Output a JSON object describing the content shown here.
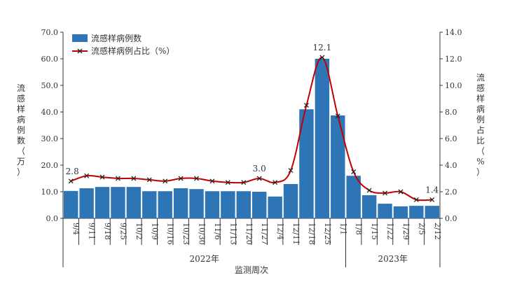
{
  "chart_data": {
    "type": "bar+line",
    "categories": [
      "9/4",
      "9/11",
      "9/18",
      "9/25",
      "10/2",
      "10/9",
      "10/16",
      "10/23",
      "10/30",
      "11/6",
      "11/13",
      "11/20",
      "11/27",
      "12/4",
      "12/11",
      "12/18",
      "12/25",
      "1/1",
      "1/8",
      "1/15",
      "1/22",
      "1/29",
      "2/5",
      "2/12"
    ],
    "series": [
      {
        "name": "流感样病例数",
        "type": "bar",
        "axis": "left",
        "color": "#2e75b6",
        "values": [
          10.3,
          11.3,
          11.8,
          11.8,
          11.8,
          10.2,
          10.2,
          11.3,
          11.0,
          10.2,
          10.2,
          10.2,
          10.0,
          8.2,
          12.9,
          41.0,
          60.0,
          38.7,
          16.0,
          8.7,
          5.5,
          4.5,
          4.7,
          4.7
        ]
      },
      {
        "name": "流感样病例占比（%）",
        "type": "line",
        "axis": "right",
        "color": "#c00000",
        "values": [
          2.8,
          3.2,
          3.1,
          3.0,
          3.0,
          2.9,
          2.8,
          3.0,
          3.0,
          2.8,
          2.7,
          2.7,
          3.0,
          2.7,
          3.6,
          8.5,
          12.1,
          7.7,
          3.5,
          2.1,
          1.9,
          2.0,
          1.4,
          1.4
        ]
      }
    ],
    "annotations": [
      {
        "index": 0,
        "label": "2.8"
      },
      {
        "index": 12,
        "label": "3.0"
      },
      {
        "index": 16,
        "label": "12.1"
      },
      {
        "index": 23,
        "label": "1.4"
      }
    ],
    "ylabel": "流感样病例数（万）",
    "y2label": "流感样病例占比（%）",
    "xlabel": "监测周次",
    "year_groups": [
      {
        "label": "2022年",
        "from": 0,
        "to": 17
      },
      {
        "label": "2023年",
        "from": 18,
        "to": 23
      }
    ],
    "ylim": [
      0,
      70
    ],
    "yticks": [
      "0.0",
      "10.0",
      "20.0",
      "30.0",
      "40.0",
      "50.0",
      "60.0",
      "70.0"
    ],
    "y2lim": [
      0,
      14
    ],
    "y2ticks": [
      "0.0",
      "2.0",
      "4.0",
      "6.0",
      "8.0",
      "10.0",
      "12.0",
      "14.0"
    ],
    "legend": "top-left",
    "grid": false
  }
}
